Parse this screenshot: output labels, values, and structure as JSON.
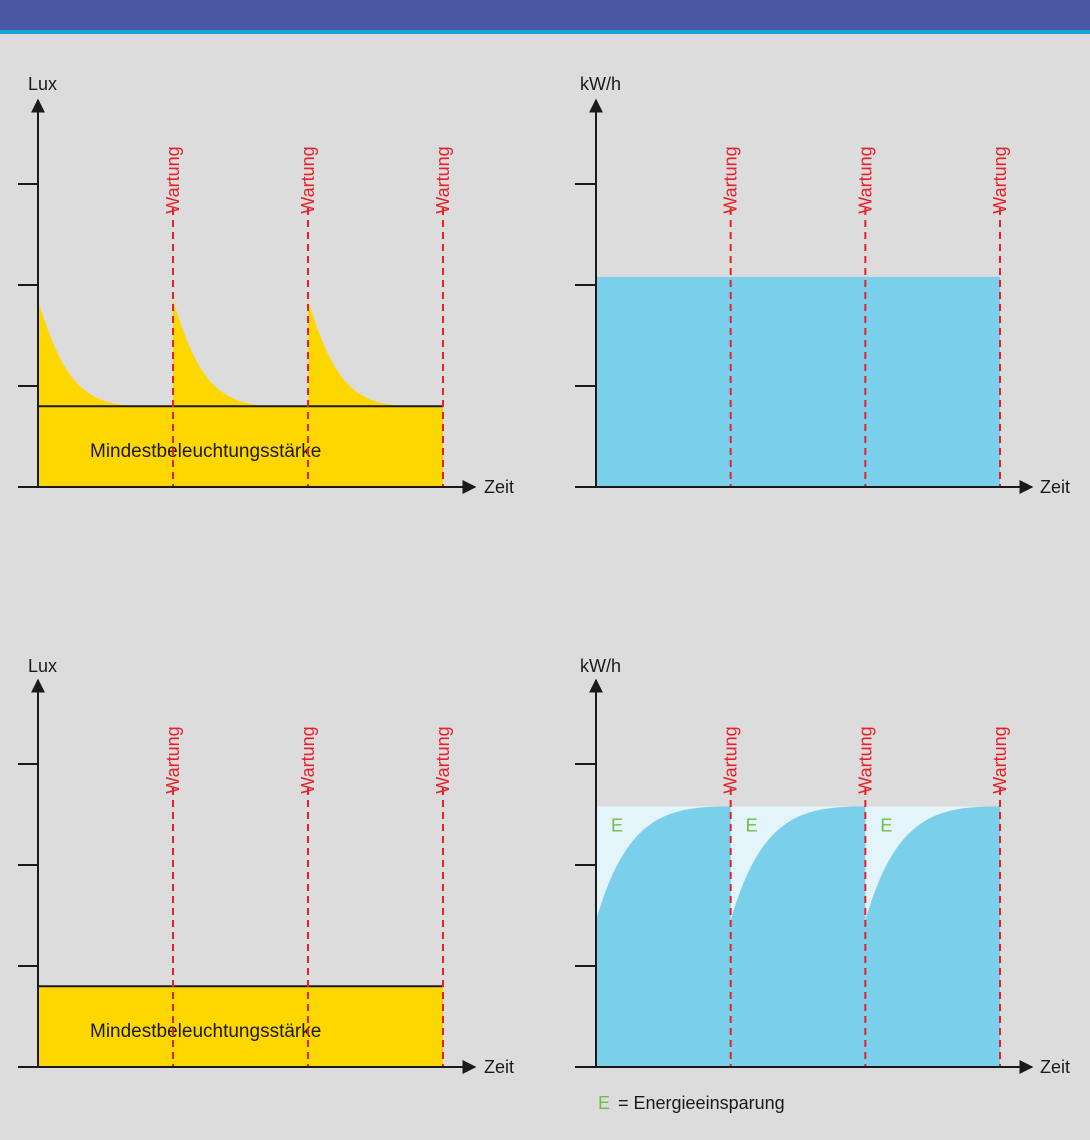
{
  "colors": {
    "header": "#4a59a6",
    "header_line": "#1aa1d8",
    "background": "#dcdcdc",
    "lux_fill": "#ffd700",
    "energy_fill": "#7acfea",
    "savings_fill": "#e3f4fb",
    "maintenance_line": "#e8202a",
    "savings_label": "#6cbf45"
  },
  "legend": {
    "symbol": "E",
    "text": "= Energieeinsparung"
  },
  "chart_data": [
    {
      "id": "lux_without_control",
      "type": "area",
      "ylabel": "Lux",
      "xlabel": "Zeit",
      "maintenance_label": "Wartung",
      "maintenance_x": [
        1,
        2,
        3
      ],
      "x_range": [
        0,
        3
      ],
      "y_range": [
        0,
        4
      ],
      "yticks": [
        1,
        2,
        3
      ],
      "minimum": {
        "label": "Mindestbeleuchtungsstärke",
        "value": 0.8
      },
      "cycles": [
        {
          "x_start": 0,
          "x_end": 1,
          "y_start": 1.85,
          "y_end": 0.8
        },
        {
          "x_start": 1,
          "x_end": 2,
          "y_start": 1.85,
          "y_end": 0.8
        },
        {
          "x_start": 2,
          "x_end": 3,
          "y_start": 1.85,
          "y_end": 0.8
        }
      ]
    },
    {
      "id": "energy_without_control",
      "type": "area",
      "ylabel": "kW/h",
      "xlabel": "Zeit",
      "maintenance_label": "Wartung",
      "maintenance_x": [
        1,
        2,
        3
      ],
      "x_range": [
        0,
        3
      ],
      "y_range": [
        0,
        4
      ],
      "yticks": [
        1,
        2,
        3
      ],
      "level": 2.08
    },
    {
      "id": "lux_with_control",
      "type": "area",
      "ylabel": "Lux",
      "xlabel": "Zeit",
      "maintenance_label": "Wartung",
      "maintenance_x": [
        1,
        2,
        3
      ],
      "x_range": [
        0,
        3
      ],
      "y_range": [
        0,
        4
      ],
      "yticks": [
        1,
        2,
        3
      ],
      "minimum": {
        "label": "Mindestbeleuchtungsstärke",
        "value": 0.8
      }
    },
    {
      "id": "energy_with_control",
      "type": "area",
      "ylabel": "kW/h",
      "xlabel": "Zeit",
      "maintenance_label": "Wartung",
      "maintenance_x": [
        1,
        2,
        3
      ],
      "x_range": [
        0,
        3
      ],
      "y_range": [
        0,
        4
      ],
      "yticks": [
        1,
        2,
        3
      ],
      "max_level": 2.58,
      "savings_label": "E",
      "cycles": [
        {
          "x_start": 0,
          "x_end": 1,
          "y_start": 1.45,
          "y_end": 2.58
        },
        {
          "x_start": 1,
          "x_end": 2,
          "y_start": 1.45,
          "y_end": 2.58
        },
        {
          "x_start": 2,
          "x_end": 3,
          "y_start": 1.45,
          "y_end": 2.58
        }
      ]
    }
  ]
}
